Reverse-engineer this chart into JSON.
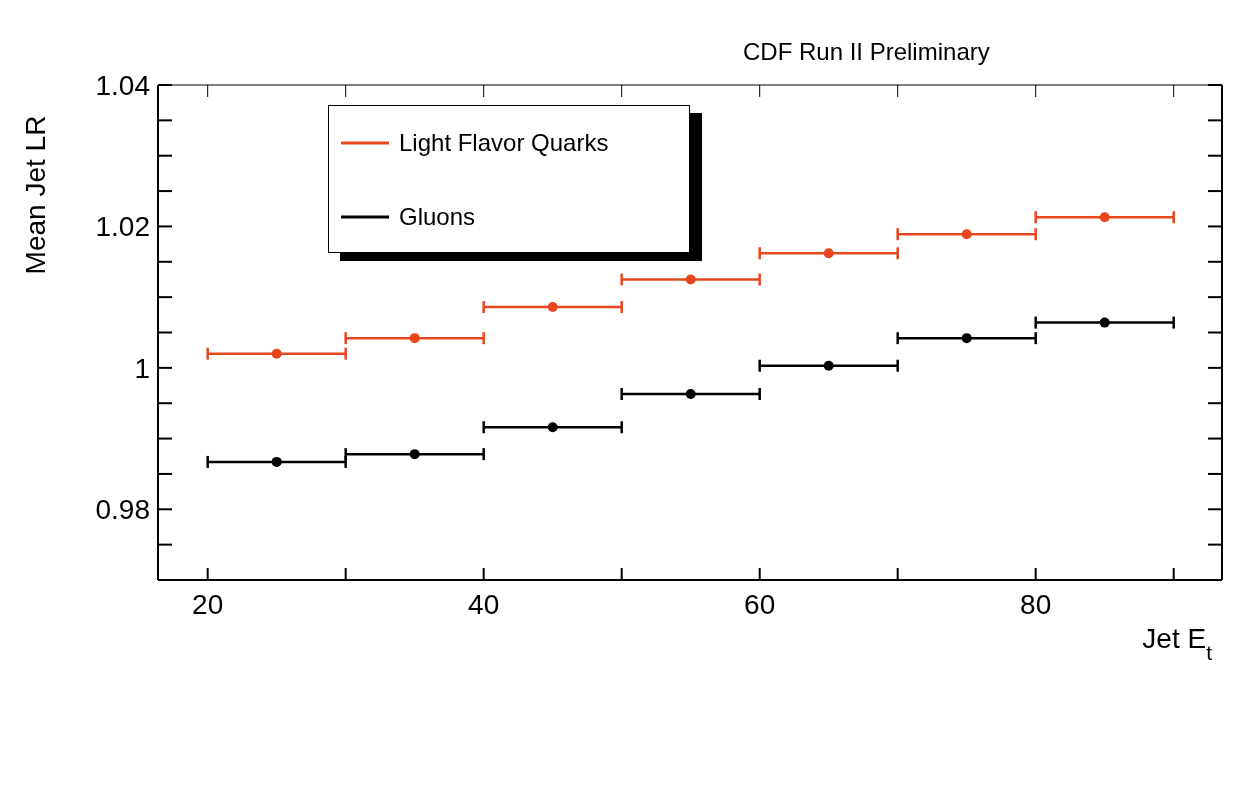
{
  "chart_data": {
    "type": "scatter",
    "title": "CDF Run II Preliminary",
    "xlabel": "Jet E$_{t}$",
    "ylabel": "Mean Jet LR",
    "xlim": [
      16.4,
      93.5
    ],
    "ylim": [
      0.97,
      1.04
    ],
    "xticks": [
      20,
      {
        "value": 30,
        "label": null
      },
      40,
      {
        "value": 50,
        "label": null
      },
      60,
      {
        "value": 70,
        "label": null
      },
      80,
      {
        "value": 90,
        "label": null
      }
    ],
    "yticks": [
      {
        "value": 0.975,
        "label": null
      },
      0.98,
      {
        "value": 0.985,
        "label": null
      },
      {
        "value": 0.99,
        "label": null
      },
      {
        "value": 0.995,
        "label": null
      },
      1,
      {
        "value": 1.005,
        "label": null
      },
      {
        "value": 1.01,
        "label": null
      },
      {
        "value": 1.015,
        "label": null
      },
      1.02,
      {
        "value": 1.025,
        "label": null
      },
      {
        "value": 1.03,
        "label": null
      },
      {
        "value": 1.035,
        "label": null
      },
      1.04
    ],
    "x": [
      25,
      35,
      45,
      55,
      65,
      75,
      85
    ],
    "series": [
      {
        "name": "Light Flavor Quarks",
        "color": "#e8461e",
        "values": [
          1.002,
          1.0042,
          1.0086,
          1.0125,
          1.0162,
          1.0189,
          1.0213
        ],
        "xerrors": [
          5,
          5,
          5,
          5,
          5,
          5,
          5
        ]
      },
      {
        "name": "Gluons",
        "color": "#000000",
        "values": [
          0.9867,
          0.9878,
          0.9916,
          0.9963,
          1.0003,
          1.0042,
          1.0064
        ],
        "xerrors": [
          5,
          5,
          5,
          5,
          5,
          5,
          5
        ]
      }
    ],
    "marker": "circle",
    "grid": false,
    "legend": "top left"
  }
}
